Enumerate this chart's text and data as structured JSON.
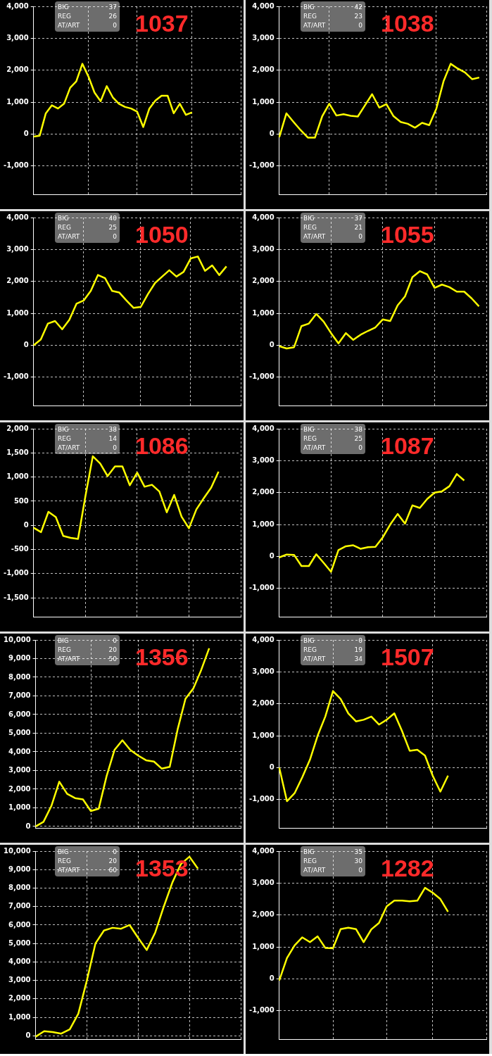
{
  "chart_data": [
    {
      "type": "line",
      "title": "1037",
      "annotations": [
        "BIG",
        "37",
        "REG",
        "26",
        "AT/ART",
        "0"
      ],
      "categories": [
        null,
        null,
        null,
        null,
        null,
        null,
        null,
        null,
        null,
        null,
        null,
        null,
        null,
        null,
        null,
        null,
        null,
        null,
        null,
        null,
        null,
        null,
        null,
        null,
        null,
        null,
        null,
        null,
        null,
        null,
        null,
        null,
        null,
        null,
        null
      ],
      "series": [
        {
          "color": "#ffff00",
          "values": [
            -80,
            -50,
            650,
            900,
            800,
            950,
            1450,
            1650,
            2200,
            1800,
            1300,
            1030,
            1500,
            1150,
            950,
            850,
            800,
            700,
            220,
            800,
            1050,
            1200,
            1200,
            650,
            950,
            600,
            680,
            null,
            null,
            null,
            null,
            null,
            null,
            null,
            null
          ]
        }
      ],
      "ylim": [
        -1900,
        4000
      ],
      "yticks": [
        {
          "value": -1000,
          "label": "-1,000"
        },
        0,
        {
          "value": 1000,
          "label": "1,000"
        },
        {
          "value": 2000,
          "label": "2,000"
        },
        {
          "value": 3000,
          "label": "3,000"
        },
        {
          "value": 4000,
          "label": "4,000"
        }
      ],
      "grid": true,
      "marker": "none"
    },
    {
      "type": "line",
      "title": "1038",
      "annotations": [
        "BIG",
        "42",
        "REG",
        "23",
        "AT/ART",
        "0"
      ],
      "categories": [
        null,
        null,
        null,
        null,
        null,
        null,
        null,
        null,
        null,
        null,
        null,
        null,
        null,
        null,
        null,
        null,
        null,
        null,
        null,
        null,
        null,
        null,
        null,
        null,
        null,
        null,
        null,
        null,
        null,
        null
      ],
      "series": [
        {
          "color": "#ffff00",
          "values": [
            -100,
            650,
            380,
            120,
            -110,
            -110,
            550,
            950,
            580,
            620,
            570,
            550,
            900,
            1250,
            830,
            940,
            560,
            380,
            320,
            200,
            350,
            280,
            800,
            1650,
            2200,
            2050,
            1930,
            1720,
            1770,
            null
          ]
        }
      ],
      "ylim": [
        -1900,
        4000
      ],
      "yticks": [
        {
          "value": -1000,
          "label": "-1,000"
        },
        0,
        {
          "value": 1000,
          "label": "1,000"
        },
        {
          "value": 2000,
          "label": "2,000"
        },
        {
          "value": 3000,
          "label": "3,000"
        },
        {
          "value": 4000,
          "label": "4,000"
        }
      ],
      "grid": true,
      "marker": "none"
    },
    {
      "type": "line",
      "title": "1050",
      "annotations": [
        "BIG",
        "40",
        "REG",
        "25",
        "AT/ART",
        "0"
      ],
      "categories": [
        null,
        null,
        null,
        null,
        null,
        null,
        null,
        null,
        null,
        null,
        null,
        null,
        null,
        null,
        null,
        null,
        null,
        null,
        null,
        null,
        null,
        null,
        null,
        null,
        null,
        null,
        null,
        null,
        null,
        null
      ],
      "series": [
        {
          "color": "#ffff00",
          "values": [
            0,
            180,
            680,
            760,
            500,
            800,
            1300,
            1400,
            1700,
            2200,
            2100,
            1700,
            1650,
            1400,
            1170,
            1200,
            1600,
            1950,
            2150,
            2350,
            2150,
            2300,
            2720,
            2780,
            2330,
            2500,
            2200,
            2470,
            null,
            null
          ]
        }
      ],
      "ylim": [
        -1900,
        4000
      ],
      "yticks": [
        {
          "value": -1000,
          "label": "-1,000"
        },
        0,
        {
          "value": 1000,
          "label": "1,000"
        },
        {
          "value": 2000,
          "label": "2,000"
        },
        {
          "value": 3000,
          "label": "3,000"
        },
        {
          "value": 4000,
          "label": "4,000"
        }
      ],
      "grid": true,
      "marker": "none"
    },
    {
      "type": "line",
      "title": "1055",
      "annotations": [
        "BIG",
        "37",
        "REG",
        "21",
        "AT/ART",
        "0"
      ],
      "categories": [
        null,
        null,
        null,
        null,
        null,
        null,
        null,
        null,
        null,
        null,
        null,
        null,
        null,
        null,
        null,
        null,
        null,
        null,
        null,
        null,
        null,
        null,
        null,
        null,
        null,
        null,
        null,
        null,
        null
      ],
      "series": [
        {
          "color": "#ffff00",
          "values": [
            -30,
            -100,
            -60,
            600,
            680,
            980,
            740,
            380,
            60,
            380,
            170,
            330,
            450,
            560,
            810,
            760,
            1250,
            1530,
            2130,
            2320,
            2220,
            1800,
            1900,
            1820,
            1680,
            1680,
            1470,
            1220,
            null
          ]
        }
      ],
      "ylim": [
        -1900,
        4000
      ],
      "yticks": [
        {
          "value": -1000,
          "label": "-1,000"
        },
        0,
        {
          "value": 1000,
          "label": "1,000"
        },
        {
          "value": 2000,
          "label": "2,000"
        },
        {
          "value": 3000,
          "label": "3,000"
        },
        {
          "value": 4000,
          "label": "4,000"
        }
      ],
      "grid": true,
      "marker": "none"
    },
    {
      "type": "line",
      "title": "1086",
      "annotations": [
        "BIG",
        "38",
        "REG",
        "14",
        "AT/ART",
        "0"
      ],
      "categories": [
        null,
        null,
        null,
        null,
        null,
        null,
        null,
        null,
        null,
        null,
        null,
        null,
        null,
        null,
        null,
        null,
        null,
        null,
        null,
        null,
        null,
        null,
        null,
        null,
        null,
        null,
        null,
        null,
        null
      ],
      "series": [
        {
          "color": "#ffff00",
          "values": [
            -50,
            -140,
            280,
            170,
            -220,
            -260,
            -280,
            600,
            1430,
            1280,
            1020,
            1220,
            1220,
            830,
            1090,
            800,
            840,
            700,
            270,
            630,
            180,
            -60,
            330,
            560,
            780,
            1110,
            null,
            null,
            null
          ]
        }
      ],
      "ylim": [
        -1900,
        2000
      ],
      "yticks": [
        {
          "value": -1500,
          "label": "-1,500"
        },
        {
          "value": -1000,
          "label": "-1,000"
        },
        -500,
        0,
        500,
        {
          "value": 1000,
          "label": "1,000"
        },
        {
          "value": 1500,
          "label": "1,500"
        },
        {
          "value": 2000,
          "label": "2,000"
        }
      ],
      "grid": true,
      "marker": "none"
    },
    {
      "type": "line",
      "title": "1087",
      "annotations": [
        "BIG",
        "38",
        "REG",
        "25",
        "AT/ART",
        "0"
      ],
      "categories": [
        null,
        null,
        null,
        null,
        null,
        null,
        null,
        null,
        null,
        null,
        null,
        null,
        null,
        null,
        null,
        null,
        null,
        null,
        null,
        null,
        null,
        null,
        null,
        null,
        null,
        null,
        null,
        null,
        null
      ],
      "series": [
        {
          "color": "#ffff00",
          "values": [
            -30,
            60,
            50,
            -300,
            -300,
            70,
            -200,
            -480,
            200,
            320,
            350,
            240,
            290,
            300,
            600,
            1000,
            1330,
            1030,
            1600,
            1520,
            1800,
            2000,
            2040,
            2200,
            2580,
            2380,
            null,
            null,
            null
          ]
        }
      ],
      "ylim": [
        -1900,
        4000
      ],
      "yticks": [
        {
          "value": -1000,
          "label": "-1,000"
        },
        0,
        {
          "value": 1000,
          "label": "1,000"
        },
        {
          "value": 2000,
          "label": "2,000"
        },
        {
          "value": 3000,
          "label": "3,000"
        },
        {
          "value": 4000,
          "label": "4,000"
        }
      ],
      "grid": true,
      "marker": "none"
    },
    {
      "type": "line",
      "title": "1356",
      "annotations": [
        "BIG",
        "0",
        "REG",
        "20",
        "AT/ART",
        "50"
      ],
      "categories": [
        null,
        null,
        null,
        null,
        null,
        null,
        null,
        null,
        null,
        null,
        null,
        null,
        null,
        null,
        null,
        null,
        null,
        null,
        null,
        null,
        null,
        null,
        null,
        null,
        null,
        null,
        null
      ],
      "series": [
        {
          "color": "#ffff00",
          "values": [
            0,
            250,
            1100,
            2400,
            1750,
            1520,
            1450,
            830,
            950,
            2700,
            4100,
            4620,
            4100,
            3800,
            3550,
            3480,
            3100,
            3200,
            5200,
            6850,
            7400,
            8400,
            9550,
            null,
            null,
            null,
            null
          ]
        }
      ],
      "ylim": [
        -100,
        10000
      ],
      "yticks": [
        0,
        {
          "value": 1000,
          "label": "1,000"
        },
        {
          "value": 2000,
          "label": "2,000"
        },
        {
          "value": 3000,
          "label": "3,000"
        },
        {
          "value": 4000,
          "label": "4,000"
        },
        {
          "value": 5000,
          "label": "5,000"
        },
        {
          "value": 6000,
          "label": "6,000"
        },
        {
          "value": 7000,
          "label": "7,000"
        },
        {
          "value": 8000,
          "label": "8,000"
        },
        {
          "value": 9000,
          "label": "9,000"
        },
        {
          "value": 10000,
          "label": "10,000"
        }
      ],
      "grid": true,
      "marker": "none"
    },
    {
      "type": "line",
      "title": "1507",
      "annotations": [
        "BIG",
        "0",
        "REG",
        "19",
        "AT/ART",
        "34"
      ],
      "categories": [
        null,
        null,
        null,
        null,
        null,
        null,
        null,
        null,
        null,
        null,
        null,
        null,
        null,
        null,
        null,
        null,
        null,
        null,
        null,
        null,
        null,
        null,
        null,
        null,
        null,
        null,
        null,
        null
      ],
      "series": [
        {
          "color": "#ffff00",
          "values": [
            0,
            -1050,
            -800,
            -300,
            250,
            1000,
            1600,
            2400,
            2150,
            1700,
            1450,
            1500,
            1600,
            1350,
            1500,
            1700,
            1150,
            530,
            560,
            380,
            -250,
            -750,
            -250,
            null,
            null,
            null,
            null,
            null
          ]
        }
      ],
      "ylim": [
        -1900,
        4000
      ],
      "yticks": [
        {
          "value": -1000,
          "label": "-1,000"
        },
        0,
        {
          "value": 1000,
          "label": "1,000"
        },
        {
          "value": 2000,
          "label": "2,000"
        },
        {
          "value": 3000,
          "label": "3,000"
        },
        {
          "value": 4000,
          "label": "4,000"
        }
      ],
      "grid": true,
      "marker": "none"
    },
    {
      "type": "line",
      "title": "1353",
      "annotations": [
        "BIG",
        "0",
        "REG",
        "20",
        "AT/ART",
        "60"
      ],
      "categories": [
        null,
        null,
        null,
        null,
        null,
        null,
        null,
        null,
        null,
        null,
        null,
        null,
        null,
        null,
        null,
        null,
        null,
        null,
        null,
        null,
        null,
        null,
        null,
        null,
        null
      ],
      "series": [
        {
          "color": "#ffff00",
          "values": [
            -50,
            250,
            200,
            120,
            350,
            1200,
            3000,
            5000,
            5700,
            5850,
            5800,
            6000,
            5300,
            4650,
            5600,
            7000,
            8300,
            9300,
            9700,
            9050,
            null,
            null,
            null,
            null,
            null
          ]
        }
      ],
      "ylim": [
        -200,
        10000
      ],
      "yticks": [
        0,
        {
          "value": 1000,
          "label": "1,000"
        },
        {
          "value": 2000,
          "label": "2,000"
        },
        {
          "value": 3000,
          "label": "3,000"
        },
        {
          "value": 4000,
          "label": "4,000"
        },
        {
          "value": 5000,
          "label": "5,000"
        },
        {
          "value": 6000,
          "label": "6,000"
        },
        {
          "value": 7000,
          "label": "7,000"
        },
        {
          "value": 8000,
          "label": "8,000"
        },
        {
          "value": 9000,
          "label": "9,000"
        },
        {
          "value": 10000,
          "label": "10,000"
        }
      ],
      "grid": true,
      "marker": "none"
    },
    {
      "type": "line",
      "title": "1282",
      "annotations": [
        "BIG",
        "35",
        "REG",
        "30",
        "AT/ART",
        "0"
      ],
      "categories": [
        null,
        null,
        null,
        null,
        null,
        null,
        null,
        null,
        null,
        null,
        null,
        null,
        null,
        null,
        null,
        null,
        null,
        null,
        null,
        null,
        null,
        null,
        null,
        null,
        null,
        null,
        null,
        null
      ],
      "series": [
        {
          "color": "#ffff00",
          "values": [
            -50,
            650,
            1050,
            1300,
            1150,
            1330,
            970,
            960,
            1560,
            1600,
            1560,
            1150,
            1550,
            1750,
            2270,
            2450,
            2450,
            2430,
            2450,
            2850,
            2700,
            2500,
            2100,
            null,
            null,
            null,
            null,
            null
          ]
        }
      ],
      "ylim": [
        -1900,
        4000
      ],
      "yticks": [
        {
          "value": -1000,
          "label": "-1,000"
        },
        0,
        {
          "value": 1000,
          "label": "1,000"
        },
        {
          "value": 2000,
          "label": "2,000"
        },
        {
          "value": 3000,
          "label": "3,000"
        },
        {
          "value": 4000,
          "label": "4,000"
        }
      ],
      "grid": true,
      "marker": "none"
    }
  ]
}
